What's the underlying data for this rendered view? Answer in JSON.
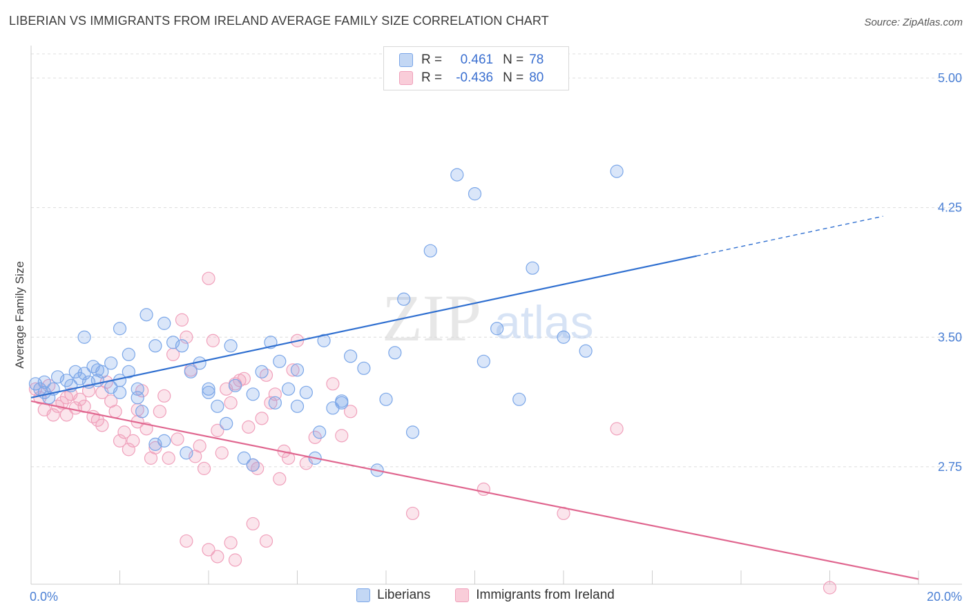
{
  "header": {
    "title": "LIBERIAN VS IMMIGRANTS FROM IRELAND AVERAGE FAMILY SIZE CORRELATION CHART",
    "source": "Source: ZipAtlas.com"
  },
  "watermark": {
    "zip": "ZIP",
    "atlas": "atlas"
  },
  "legend": {
    "rows": [
      {
        "r_label": "R =",
        "r_value": "0.461",
        "n_label": "N =",
        "n_value": "78",
        "color": "#7aa6e8"
      },
      {
        "r_label": "R =",
        "r_value": "-0.436",
        "n_label": "N =",
        "n_value": "80",
        "color": "#f0a0bb"
      }
    ]
  },
  "bottom_legend": [
    {
      "label": "Liberians",
      "color": "#7aa6e8"
    },
    {
      "label": "Immigrants from Ireland",
      "color": "#f0a0bb"
    }
  ],
  "chart_data": {
    "type": "scatter",
    "title": "LIBERIAN VS IMMIGRANTS FROM IRELAND AVERAGE FAMILY SIZE CORRELATION CHART",
    "xlabel": "",
    "ylabel": "Average Family Size",
    "xlim": [
      0,
      20
    ],
    "ylim": [
      2.07,
      5.14
    ],
    "x_tick_labels": [
      {
        "value": 0,
        "label": "0.0%"
      },
      {
        "value": 20,
        "label": "20.0%"
      }
    ],
    "y_ticks": [
      {
        "value": 2.75,
        "label": "2.75"
      },
      {
        "value": 3.5,
        "label": "3.50"
      },
      {
        "value": 4.25,
        "label": "4.25"
      },
      {
        "value": 5.0,
        "label": "5.00"
      }
    ],
    "grid": true,
    "legend_position": "top-center",
    "series": [
      {
        "name": "Liberians",
        "color": "#7aa6e8",
        "line_color": "#2f6fd0",
        "r": 0.461,
        "n": 78,
        "trend": {
          "x0": 0,
          "y0": 3.15,
          "x1": 15,
          "y1": 3.97,
          "dash_x1": 19.2,
          "dash_y1": 4.2
        },
        "points": [
          [
            0.1,
            3.23
          ],
          [
            0.2,
            3.2
          ],
          [
            0.3,
            3.18
          ],
          [
            0.3,
            3.24
          ],
          [
            0.4,
            3.15
          ],
          [
            0.5,
            3.2
          ],
          [
            0.6,
            3.27
          ],
          [
            0.8,
            3.25
          ],
          [
            0.9,
            3.22
          ],
          [
            1.0,
            3.3
          ],
          [
            1.1,
            3.26
          ],
          [
            1.2,
            3.29
          ],
          [
            1.3,
            3.24
          ],
          [
            1.4,
            3.33
          ],
          [
            1.5,
            3.25
          ],
          [
            1.6,
            3.3
          ],
          [
            1.8,
            3.21
          ],
          [
            2.0,
            3.18
          ],
          [
            2.2,
            3.3
          ],
          [
            2.4,
            3.15
          ],
          [
            1.2,
            3.5
          ],
          [
            1.5,
            3.31
          ],
          [
            1.8,
            3.35
          ],
          [
            2.0,
            3.55
          ],
          [
            2.2,
            3.4
          ],
          [
            2.4,
            3.2
          ],
          [
            2.6,
            3.63
          ],
          [
            2.8,
            3.45
          ],
          [
            3.0,
            3.58
          ],
          [
            3.2,
            3.47
          ],
          [
            3.4,
            3.45
          ],
          [
            3.6,
            3.3
          ],
          [
            3.8,
            3.35
          ],
          [
            4.0,
            3.2
          ],
          [
            4.2,
            3.1
          ],
          [
            4.4,
            3.0
          ],
          [
            4.6,
            3.22
          ],
          [
            4.8,
            2.8
          ],
          [
            5.0,
            3.17
          ],
          [
            5.2,
            3.3
          ],
          [
            5.4,
            3.47
          ],
          [
            5.6,
            3.36
          ],
          [
            5.8,
            3.2
          ],
          [
            6.0,
            3.31
          ],
          [
            6.2,
            3.18
          ],
          [
            6.4,
            2.8
          ],
          [
            6.6,
            3.48
          ],
          [
            6.8,
            3.09
          ],
          [
            7.0,
            3.13
          ],
          [
            7.2,
            3.39
          ],
          [
            7.5,
            3.32
          ],
          [
            7.8,
            2.73
          ],
          [
            8.0,
            3.14
          ],
          [
            8.2,
            3.41
          ],
          [
            8.4,
            3.72
          ],
          [
            8.6,
            2.95
          ],
          [
            9.0,
            4.0
          ],
          [
            9.6,
            4.44
          ],
          [
            10.0,
            4.33
          ],
          [
            10.2,
            3.36
          ],
          [
            10.5,
            3.55
          ],
          [
            11.0,
            3.14
          ],
          [
            11.3,
            3.9
          ],
          [
            12.0,
            3.5
          ],
          [
            12.5,
            3.42
          ],
          [
            13.2,
            4.46
          ],
          [
            2.0,
            3.25
          ],
          [
            2.5,
            3.07
          ],
          [
            3.0,
            2.9
          ],
          [
            3.5,
            2.83
          ],
          [
            4.0,
            3.18
          ],
          [
            4.5,
            3.45
          ],
          [
            5.0,
            2.76
          ],
          [
            5.5,
            3.12
          ],
          [
            6.0,
            3.1
          ],
          [
            6.5,
            2.95
          ],
          [
            7.0,
            3.12
          ],
          [
            2.8,
            2.88
          ]
        ]
      },
      {
        "name": "Immigrants from Ireland",
        "color": "#f0a0bb",
        "line_color": "#e0668f",
        "r": -0.436,
        "n": 80,
        "trend": {
          "x0": 0,
          "y0": 3.13,
          "x1": 20,
          "y1": 2.1
        },
        "points": [
          [
            0.1,
            3.2
          ],
          [
            0.2,
            3.15
          ],
          [
            0.3,
            3.08
          ],
          [
            0.4,
            3.22
          ],
          [
            0.5,
            3.05
          ],
          [
            0.6,
            3.1
          ],
          [
            0.7,
            3.12
          ],
          [
            0.8,
            3.05
          ],
          [
            0.9,
            3.17
          ],
          [
            1.0,
            3.09
          ],
          [
            1.1,
            3.14
          ],
          [
            1.2,
            3.1
          ],
          [
            1.3,
            3.19
          ],
          [
            1.4,
            3.04
          ],
          [
            1.5,
            3.02
          ],
          [
            1.6,
            3.18
          ],
          [
            1.7,
            3.24
          ],
          [
            1.8,
            3.13
          ],
          [
            1.9,
            3.07
          ],
          [
            2.0,
            2.9
          ],
          [
            2.1,
            2.95
          ],
          [
            2.2,
            2.85
          ],
          [
            2.3,
            2.9
          ],
          [
            2.4,
            3.01
          ],
          [
            2.5,
            3.19
          ],
          [
            2.6,
            2.97
          ],
          [
            2.7,
            2.8
          ],
          [
            2.8,
            2.86
          ],
          [
            2.9,
            3.07
          ],
          [
            3.0,
            3.16
          ],
          [
            3.1,
            2.8
          ],
          [
            3.2,
            3.4
          ],
          [
            3.3,
            2.91
          ],
          [
            3.4,
            3.6
          ],
          [
            3.5,
            3.5
          ],
          [
            3.6,
            3.31
          ],
          [
            3.7,
            2.81
          ],
          [
            3.8,
            2.87
          ],
          [
            3.9,
            2.74
          ],
          [
            4.0,
            3.84
          ],
          [
            4.1,
            3.48
          ],
          [
            4.2,
            2.96
          ],
          [
            4.3,
            2.83
          ],
          [
            4.4,
            3.2
          ],
          [
            4.5,
            3.12
          ],
          [
            4.6,
            3.23
          ],
          [
            4.7,
            3.25
          ],
          [
            4.8,
            3.26
          ],
          [
            4.9,
            2.98
          ],
          [
            5.0,
            2.76
          ],
          [
            5.1,
            2.74
          ],
          [
            5.2,
            3.03
          ],
          [
            5.3,
            3.28
          ],
          [
            5.4,
            3.12
          ],
          [
            5.5,
            3.17
          ],
          [
            5.6,
            2.68
          ],
          [
            5.7,
            2.84
          ],
          [
            5.8,
            2.8
          ],
          [
            5.9,
            3.31
          ],
          [
            6.0,
            3.48
          ],
          [
            6.2,
            2.77
          ],
          [
            6.4,
            2.92
          ],
          [
            6.8,
            3.23
          ],
          [
            7.0,
            2.93
          ],
          [
            7.2,
            3.07
          ],
          [
            8.6,
            2.48
          ],
          [
            10.2,
            2.62
          ],
          [
            12.0,
            2.48
          ],
          [
            13.2,
            2.97
          ],
          [
            18.0,
            2.05
          ],
          [
            3.5,
            2.32
          ],
          [
            4.0,
            2.27
          ],
          [
            4.5,
            2.31
          ],
          [
            5.0,
            2.42
          ],
          [
            5.3,
            2.32
          ],
          [
            4.2,
            2.23
          ],
          [
            4.6,
            2.21
          ],
          [
            2.4,
            3.08
          ],
          [
            1.6,
            2.99
          ],
          [
            0.8,
            3.15
          ]
        ]
      }
    ]
  }
}
